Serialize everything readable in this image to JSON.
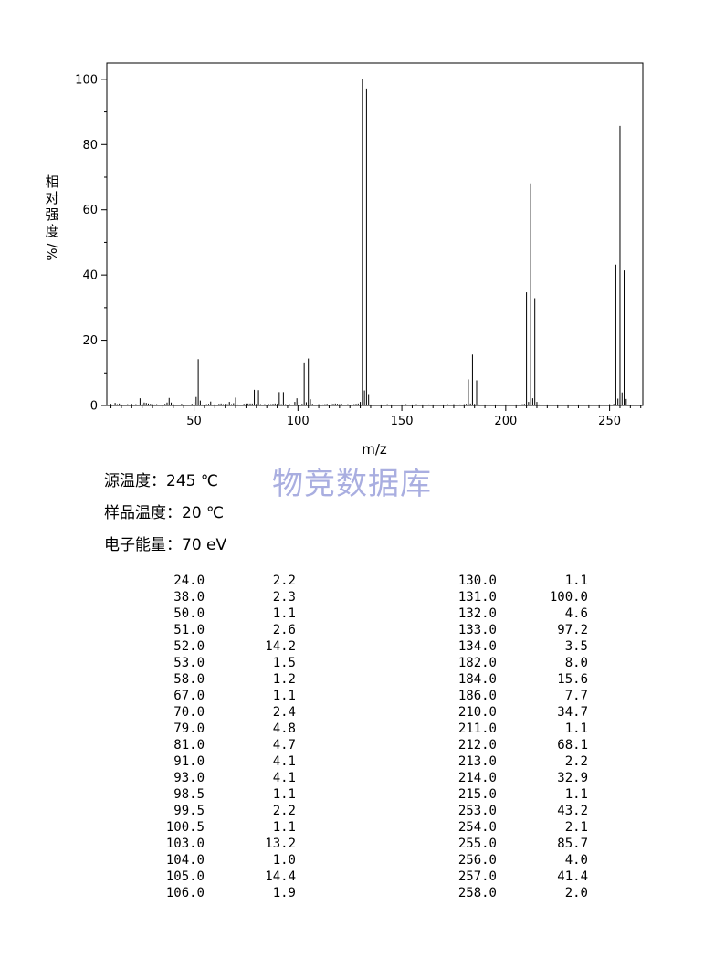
{
  "chart_data": {
    "type": "bar",
    "title": "",
    "xlabel": "m/z",
    "ylabel": "相对强度%/",
    "xlim": [
      8,
      266
    ],
    "ylim": [
      0,
      105
    ],
    "x_ticks": [
      50,
      100,
      150,
      200,
      250
    ],
    "y_ticks": [
      0,
      20,
      40,
      60,
      80,
      100
    ],
    "grid": false,
    "peaks": [
      [
        10,
        0.5
      ],
      [
        12,
        0.8
      ],
      [
        13,
        0.4
      ],
      [
        14,
        0.6
      ],
      [
        15,
        0.3
      ],
      [
        18,
        0.4
      ],
      [
        20,
        0.5
      ],
      [
        22,
        0.4
      ],
      [
        24,
        2.2
      ],
      [
        25,
        0.6
      ],
      [
        26,
        0.9
      ],
      [
        27,
        0.8
      ],
      [
        28,
        0.6
      ],
      [
        29,
        0.5
      ],
      [
        30,
        0.4
      ],
      [
        31,
        0.3
      ],
      [
        32,
        0.4
      ],
      [
        36,
        0.5
      ],
      [
        37,
        0.9
      ],
      [
        38,
        2.3
      ],
      [
        39,
        0.9
      ],
      [
        40,
        0.4
      ],
      [
        44,
        0.5
      ],
      [
        45,
        0.3
      ],
      [
        49,
        0.5
      ],
      [
        50,
        1.1
      ],
      [
        51,
        2.6
      ],
      [
        52,
        14.2
      ],
      [
        53,
        1.5
      ],
      [
        54,
        0.3
      ],
      [
        56,
        0.4
      ],
      [
        57,
        0.5
      ],
      [
        58,
        1.2
      ],
      [
        60,
        0.4
      ],
      [
        62,
        0.5
      ],
      [
        63,
        0.6
      ],
      [
        64,
        0.4
      ],
      [
        65,
        0.5
      ],
      [
        66,
        0.4
      ],
      [
        67,
        1.1
      ],
      [
        68,
        0.4
      ],
      [
        69,
        0.7
      ],
      [
        70,
        2.4
      ],
      [
        71,
        0.3
      ],
      [
        74,
        0.5
      ],
      [
        75,
        0.6
      ],
      [
        76,
        0.6
      ],
      [
        77,
        0.6
      ],
      [
        78,
        0.6
      ],
      [
        79,
        4.8
      ],
      [
        80,
        0.5
      ],
      [
        81,
        4.7
      ],
      [
        82,
        0.4
      ],
      [
        84,
        0.4
      ],
      [
        86,
        0.4
      ],
      [
        87,
        0.4
      ],
      [
        88,
        0.5
      ],
      [
        89,
        0.6
      ],
      [
        90,
        0.5
      ],
      [
        91,
        4.1
      ],
      [
        92,
        0.4
      ],
      [
        93,
        4.1
      ],
      [
        94,
        0.4
      ],
      [
        96,
        0.4
      ],
      [
        98.5,
        1.1
      ],
      [
        99.5,
        2.2
      ],
      [
        100.5,
        1.1
      ],
      [
        102,
        0.5
      ],
      [
        103,
        13.2
      ],
      [
        104,
        1.0
      ],
      [
        105,
        14.4
      ],
      [
        106,
        1.9
      ],
      [
        107,
        0.5
      ],
      [
        110,
        0.4
      ],
      [
        112,
        0.3
      ],
      [
        113,
        0.4
      ],
      [
        114,
        0.5
      ],
      [
        116,
        0.6
      ],
      [
        117,
        0.5
      ],
      [
        118,
        0.6
      ],
      [
        119,
        0.5
      ],
      [
        120,
        0.4
      ],
      [
        121,
        0.5
      ],
      [
        124,
        0.4
      ],
      [
        126,
        0.5
      ],
      [
        127,
        0.4
      ],
      [
        128,
        0.5
      ],
      [
        129,
        0.6
      ],
      [
        130,
        1.1
      ],
      [
        131,
        100.0
      ],
      [
        132,
        4.6
      ],
      [
        133,
        97.2
      ],
      [
        134,
        3.5
      ],
      [
        135,
        0.3
      ],
      [
        140,
        0.3
      ],
      [
        143,
        0.4
      ],
      [
        145,
        0.3
      ],
      [
        150,
        0.3
      ],
      [
        152,
        0.4
      ],
      [
        155,
        0.3
      ],
      [
        157,
        0.4
      ],
      [
        160,
        0.3
      ],
      [
        163,
        0.3
      ],
      [
        165,
        0.3
      ],
      [
        170,
        0.3
      ],
      [
        172,
        0.4
      ],
      [
        175,
        0.4
      ],
      [
        178,
        0.3
      ],
      [
        180,
        0.4
      ],
      [
        181,
        0.5
      ],
      [
        182,
        8.0
      ],
      [
        183,
        0.6
      ],
      [
        184,
        15.6
      ],
      [
        185,
        0.5
      ],
      [
        186,
        7.7
      ],
      [
        187,
        0.3
      ],
      [
        190,
        0.3
      ],
      [
        195,
        0.3
      ],
      [
        200,
        0.3
      ],
      [
        205,
        0.3
      ],
      [
        208,
        0.4
      ],
      [
        209,
        0.5
      ],
      [
        210,
        34.7
      ],
      [
        211,
        1.1
      ],
      [
        212,
        68.1
      ],
      [
        213,
        2.2
      ],
      [
        214,
        32.9
      ],
      [
        215,
        1.1
      ],
      [
        216,
        0.3
      ],
      [
        220,
        0.3
      ],
      [
        225,
        0.3
      ],
      [
        230,
        0.3
      ],
      [
        235,
        0.3
      ],
      [
        240,
        0.3
      ],
      [
        245,
        0.3
      ],
      [
        250,
        0.4
      ],
      [
        252,
        0.5
      ],
      [
        253,
        43.2
      ],
      [
        254,
        2.1
      ],
      [
        255,
        85.7
      ],
      [
        256,
        4.0
      ],
      [
        257,
        41.4
      ],
      [
        258,
        2.0
      ],
      [
        259,
        0.3
      ]
    ]
  },
  "conditions": {
    "source_temp": "源温度：245 ℃",
    "sample_temp": "样品温度：20 ℃",
    "electron_energy": "电子能量：70 eV"
  },
  "watermark": "物竞数据库",
  "peak_table_left": [
    [
      "24.0",
      "2.2"
    ],
    [
      "38.0",
      "2.3"
    ],
    [
      "50.0",
      "1.1"
    ],
    [
      "51.0",
      "2.6"
    ],
    [
      "52.0",
      "14.2"
    ],
    [
      "53.0",
      "1.5"
    ],
    [
      "58.0",
      "1.2"
    ],
    [
      "67.0",
      "1.1"
    ],
    [
      "70.0",
      "2.4"
    ],
    [
      "79.0",
      "4.8"
    ],
    [
      "81.0",
      "4.7"
    ],
    [
      "91.0",
      "4.1"
    ],
    [
      "93.0",
      "4.1"
    ],
    [
      "98.5",
      "1.1"
    ],
    [
      "99.5",
      "2.2"
    ],
    [
      "100.5",
      "1.1"
    ],
    [
      "103.0",
      "13.2"
    ],
    [
      "104.0",
      "1.0"
    ],
    [
      "105.0",
      "14.4"
    ],
    [
      "106.0",
      "1.9"
    ]
  ],
  "peak_table_right": [
    [
      "130.0",
      "1.1"
    ],
    [
      "131.0",
      "100.0"
    ],
    [
      "132.0",
      "4.6"
    ],
    [
      "133.0",
      "97.2"
    ],
    [
      "134.0",
      "3.5"
    ],
    [
      "182.0",
      "8.0"
    ],
    [
      "184.0",
      "15.6"
    ],
    [
      "186.0",
      "7.7"
    ],
    [
      "210.0",
      "34.7"
    ],
    [
      "211.0",
      "1.1"
    ],
    [
      "212.0",
      "68.1"
    ],
    [
      "213.0",
      "2.2"
    ],
    [
      "214.0",
      "32.9"
    ],
    [
      "215.0",
      "1.1"
    ],
    [
      "253.0",
      "43.2"
    ],
    [
      "254.0",
      "2.1"
    ],
    [
      "255.0",
      "85.7"
    ],
    [
      "256.0",
      "4.0"
    ],
    [
      "257.0",
      "41.4"
    ],
    [
      "258.0",
      "2.0"
    ]
  ]
}
